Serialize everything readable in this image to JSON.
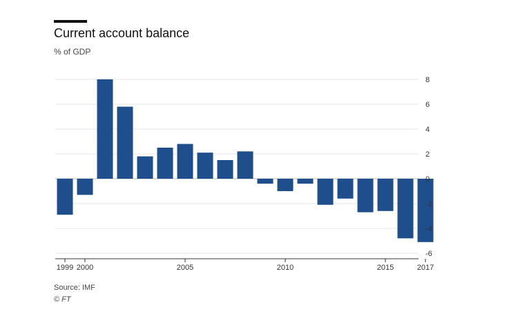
{
  "header": {
    "title": "Current account balance",
    "subtitle": "% of GDP"
  },
  "footer": {
    "source": "Source: IMF",
    "credit": "© FT"
  },
  "colors": {
    "bar": "#1f4e8c",
    "grid": "#e6e6e6",
    "axis": "#333333"
  },
  "chart_data": {
    "type": "bar",
    "title": "Current account balance",
    "subtitle": "% of GDP",
    "categories": [
      "1999",
      "2000",
      "2001",
      "2002",
      "2003",
      "2004",
      "2005",
      "2006",
      "2007",
      "2008",
      "2009",
      "2010",
      "2011",
      "2012",
      "2013",
      "2014",
      "2015",
      "2016",
      "2017"
    ],
    "values": [
      -2.9,
      -1.3,
      8.0,
      5.8,
      1.8,
      2.5,
      2.8,
      2.1,
      1.5,
      2.2,
      -0.4,
      -1.0,
      -0.4,
      -2.1,
      -1.6,
      -2.7,
      -2.6,
      -4.8,
      -5.1
    ],
    "x_tick_labels": [
      "1999",
      "2000",
      "2005",
      "2010",
      "2015",
      "2017"
    ],
    "y_ticks": [
      8,
      6,
      4,
      2,
      0,
      -2,
      -4,
      -6
    ],
    "ylim": [
      -6,
      8
    ],
    "y_axis_side": "right",
    "grid": true,
    "legend": "none"
  }
}
